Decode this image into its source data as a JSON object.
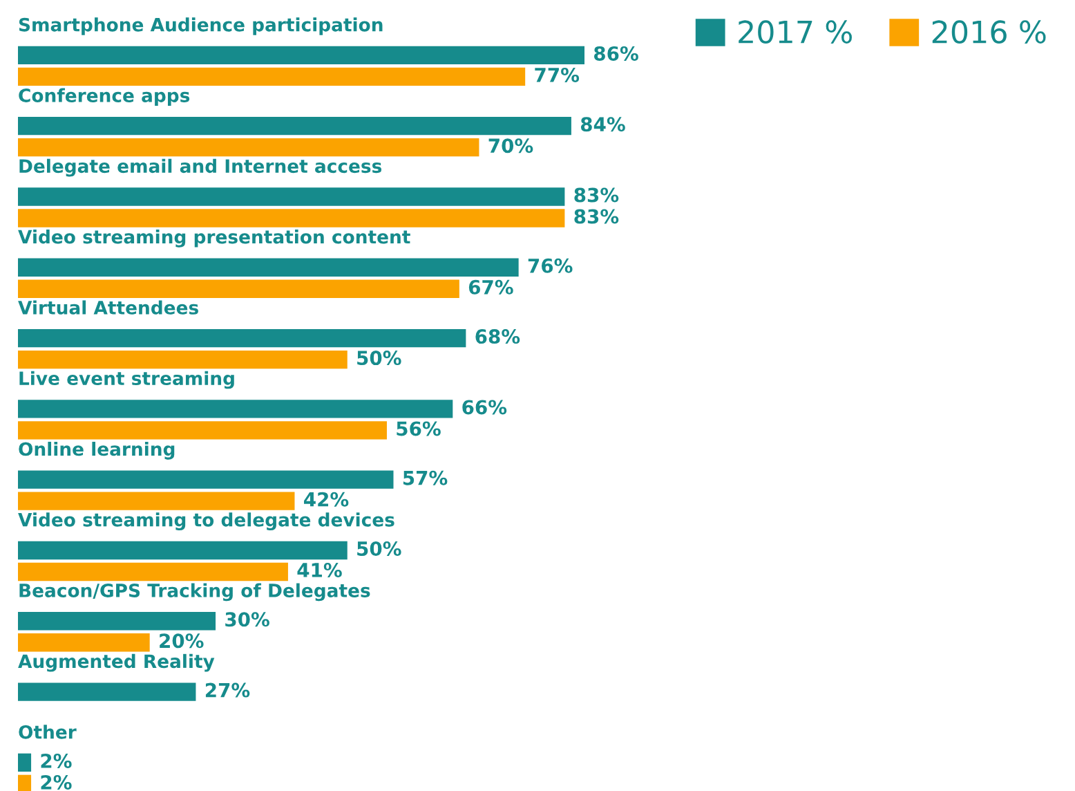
{
  "chart_data": {
    "type": "bar",
    "orientation": "horizontal",
    "legend": "top right",
    "categories": [
      "Smartphone Audience participation",
      "Conference apps",
      "Delegate email and Internet access",
      "Video streaming presentation content",
      "Virtual Attendees",
      "Live event streaming",
      "Online learning",
      "Video streaming to delegate devices",
      "Beacon/GPS Tracking of Delegates",
      "Augmented Reality",
      "Other"
    ],
    "series": [
      {
        "name": "2017 %",
        "color": "#168b8c",
        "values": [
          86,
          84,
          83,
          76,
          68,
          66,
          57,
          50,
          30,
          27,
          2
        ],
        "value_labels": [
          "86%",
          "84%",
          "83%",
          "76%",
          "68%",
          "66%",
          "57%",
          "50%",
          "30%",
          "27%",
          "2%"
        ]
      },
      {
        "name": "2016 %",
        "color": "#fba300",
        "values": [
          77,
          70,
          83,
          67,
          50,
          56,
          42,
          41,
          20,
          null,
          2
        ],
        "value_labels": [
          "77%",
          "70%",
          "83%",
          "67%",
          "50%",
          "56%",
          "42%",
          "41%",
          "20%",
          null,
          "2%"
        ]
      }
    ]
  }
}
